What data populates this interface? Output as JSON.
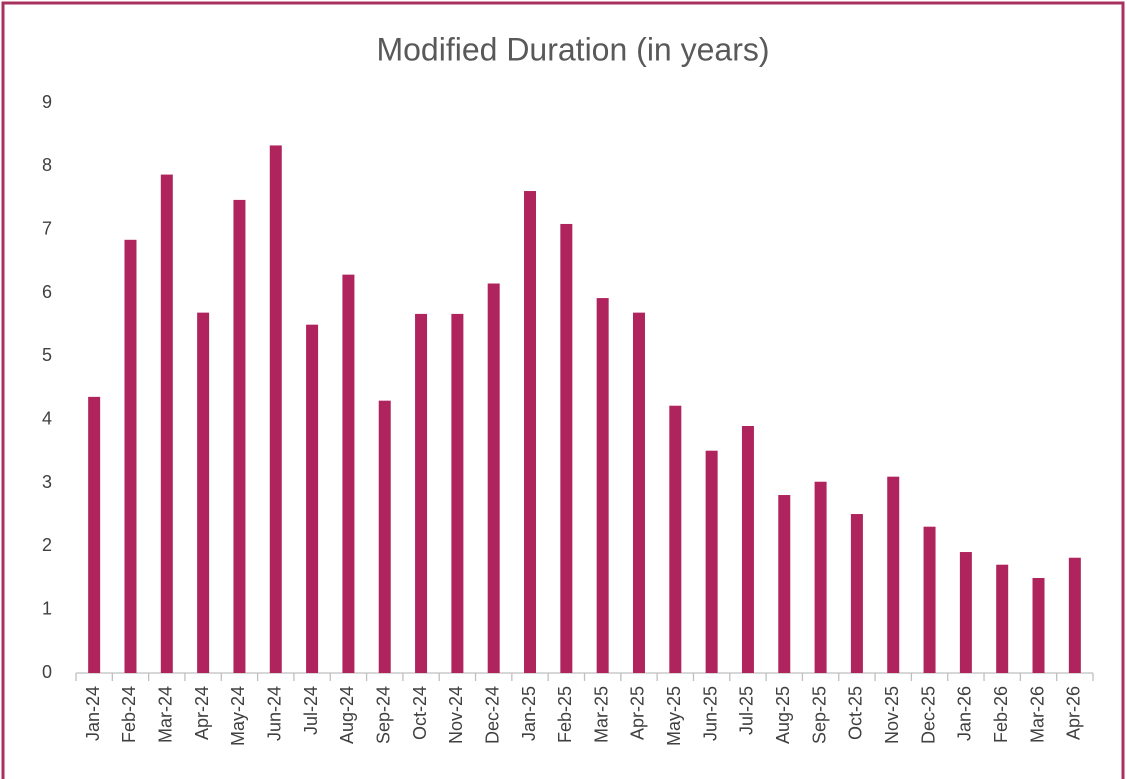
{
  "chart_data": {
    "type": "bar",
    "title": "Modified Duration (in years)",
    "categories": [
      "Jan-24",
      "Feb-24",
      "Mar-24",
      "Apr-24",
      "May-24",
      "Jun-24",
      "Jul-24",
      "Aug-24",
      "Sep-24",
      "Oct-24",
      "Nov-24",
      "Dec-24",
      "Jan-25",
      "Feb-25",
      "Mar-25",
      "Apr-25",
      "May-25",
      "Jun-25",
      "Jul-25",
      "Aug-25",
      "Sep-25",
      "Oct-25",
      "Nov-25",
      "Dec-25",
      "Jan-26",
      "Feb-26",
      "Mar-26",
      "Apr-26"
    ],
    "values": [
      4.36,
      6.84,
      7.87,
      5.69,
      7.47,
      8.33,
      5.5,
      6.29,
      4.3,
      5.67,
      5.67,
      6.15,
      7.61,
      7.09,
      5.92,
      5.69,
      4.22,
      3.51,
      3.9,
      2.81,
      3.02,
      2.51,
      3.1,
      2.31,
      1.91,
      1.71,
      1.5,
      1.82
    ],
    "color": "#b0245e",
    "ylim": [
      0,
      9
    ],
    "yticks": [
      0,
      1,
      2,
      3,
      4,
      5,
      6,
      7,
      8,
      9
    ],
    "grid": false
  }
}
